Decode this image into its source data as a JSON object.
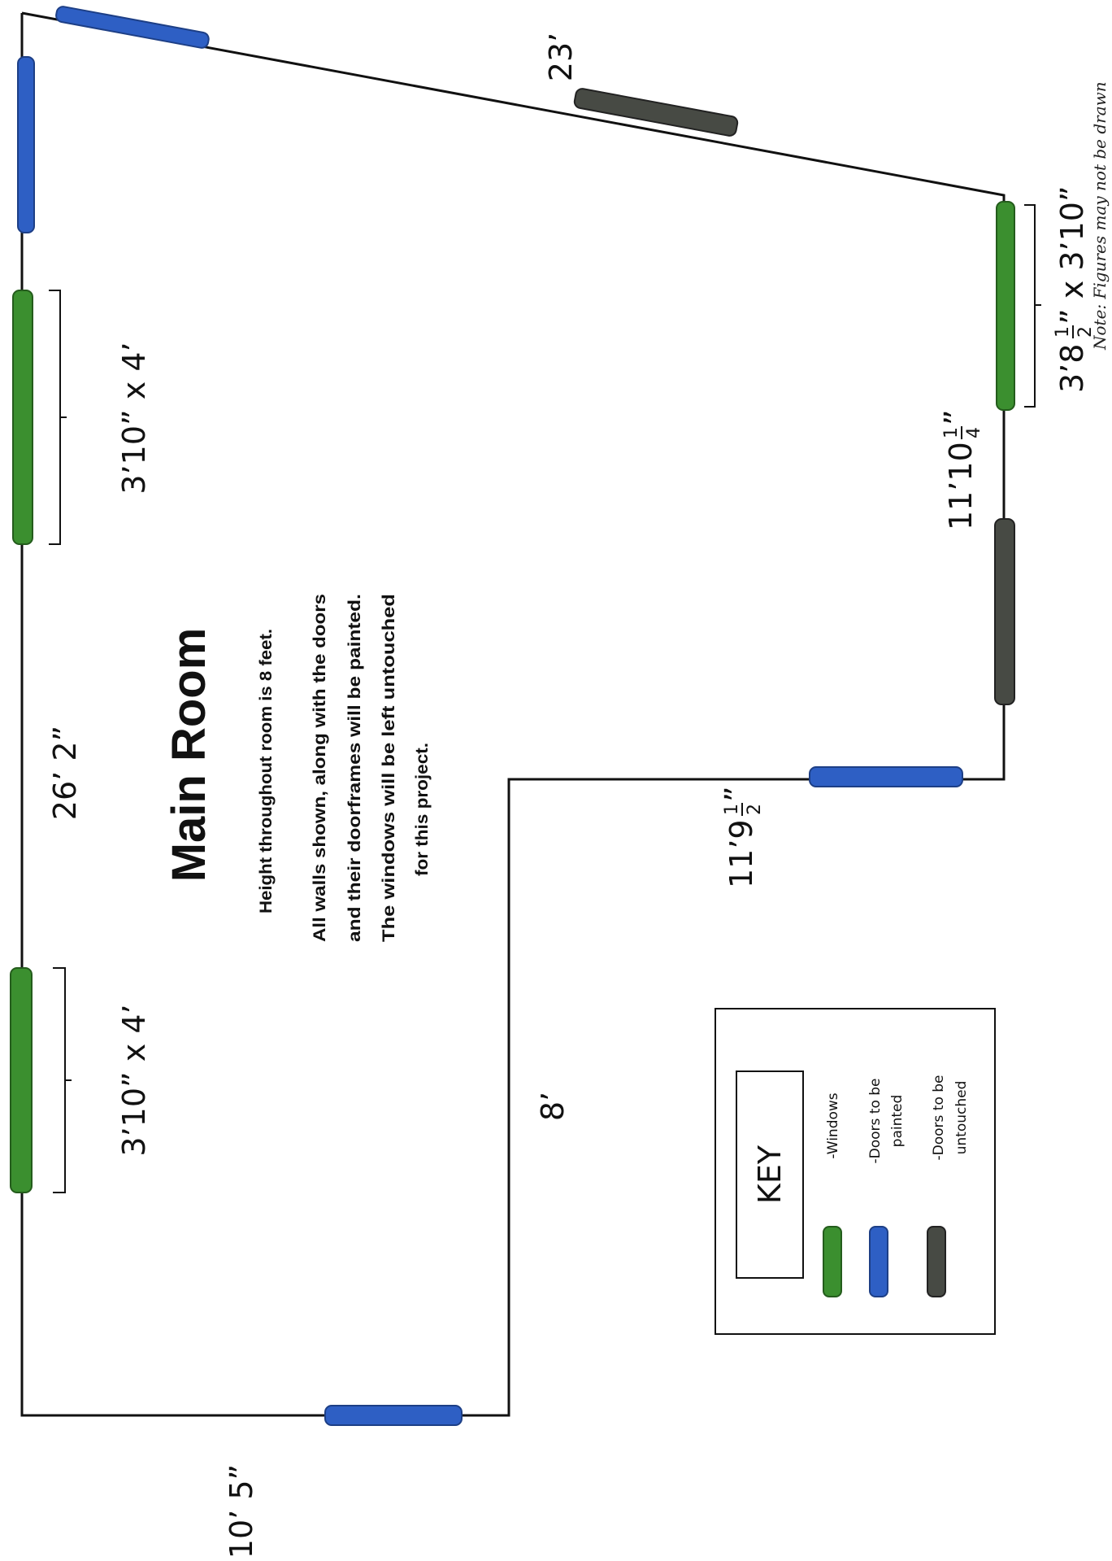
{
  "title": "Main Room",
  "notes": {
    "height": "Height throughout room is 8 feet.",
    "walls_1": "All walls shown, along with the doors",
    "walls_2": "and their doorframes will be painted.",
    "walls_3": "The windows will be left untouched",
    "walls_4": "for this project."
  },
  "dimensions": {
    "left_wall": "26’ 2”",
    "top_wall": "23’",
    "right_upper": "11’10",
    "right_upper_frac_num": "1",
    "right_upper_frac_den": "4",
    "right_upper_suffix": "”",
    "step_wall": "11’9",
    "step_wall_frac_num": "1",
    "step_wall_frac_den": "2",
    "step_wall_suffix": "”",
    "inner_wall": "8’",
    "bottom_wall": "10’ 5”",
    "window_left_upper": "3’10” x 4’",
    "window_left_lower": "3’10” x 4’",
    "window_right_a": "3’8",
    "window_right_frac_num": "1",
    "window_right_frac_den": "2",
    "window_right_b": "” x 3’10”"
  },
  "key": {
    "title": "KEY",
    "windows_label": "-Windows",
    "painted_label_1": "-Doors to be",
    "painted_label_2": "painted",
    "untouched_label_1": "-Doors to be",
    "untouched_label_2": "untouched"
  },
  "footnote": "Note: Figures may not be drawn",
  "colors": {
    "window": "#3b8f2f",
    "door_painted": "#2e5fc4",
    "door_untouched": "#474a44",
    "wall": "#111111"
  }
}
